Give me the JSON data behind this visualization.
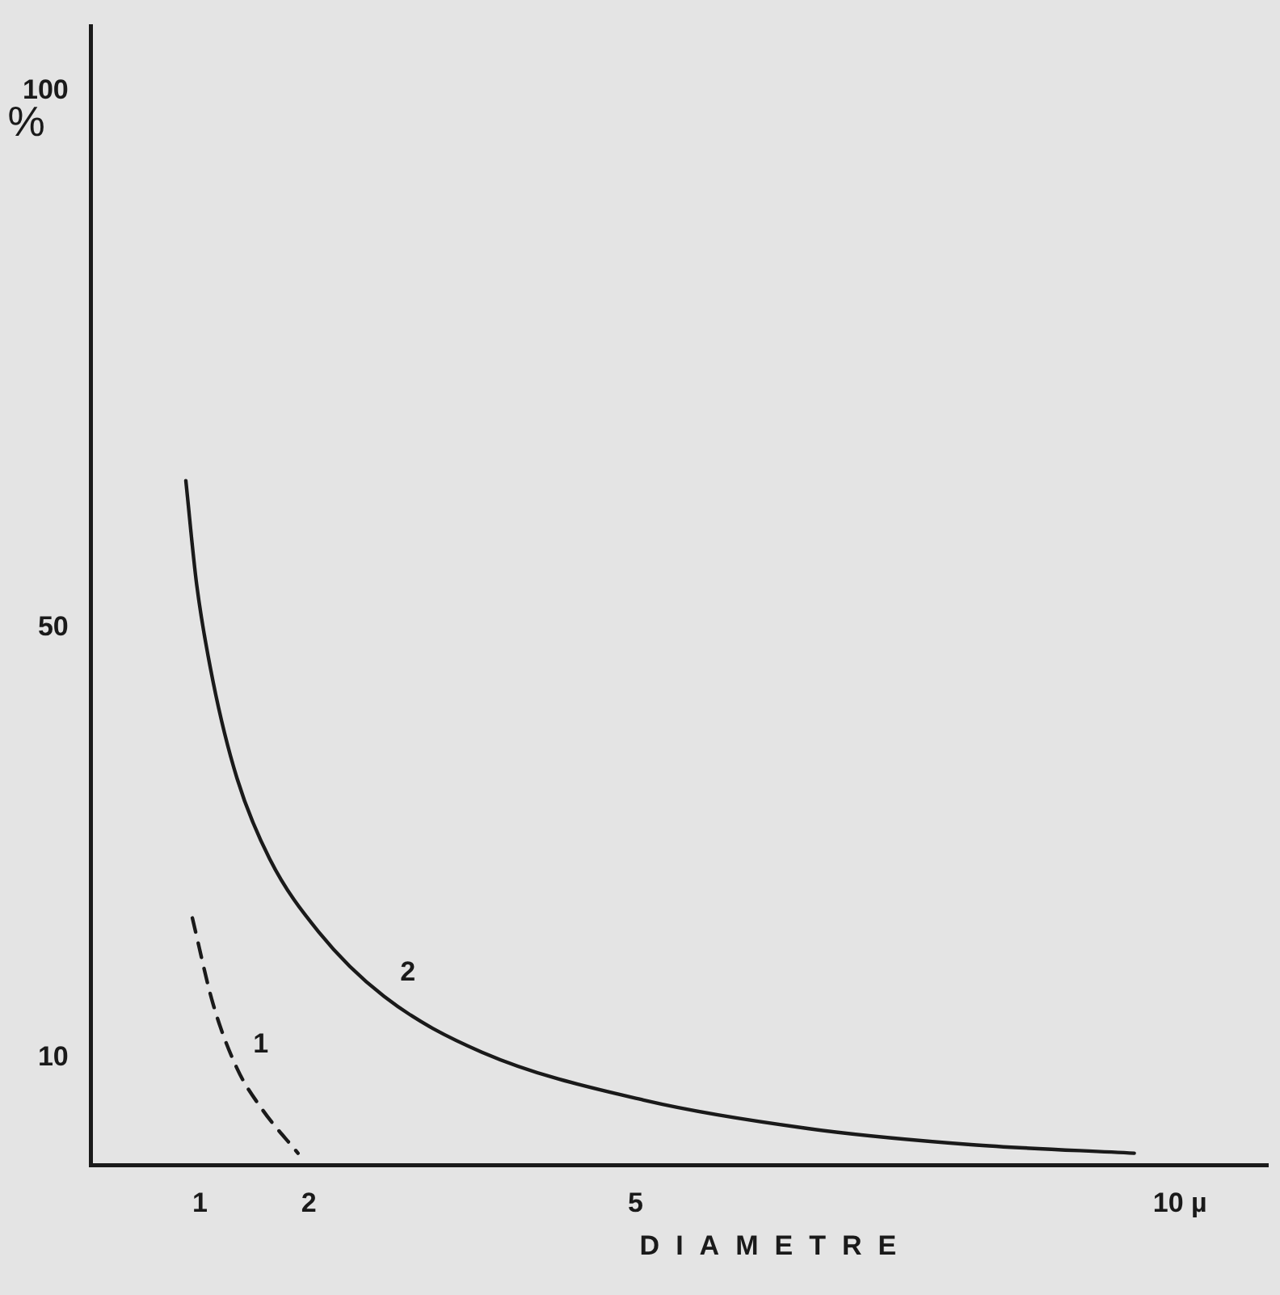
{
  "chart_data": {
    "type": "line",
    "xlabel": "DIAMETRE",
    "ylabel": "%",
    "xlim": [
      0,
      10.8
    ],
    "xticks": [
      1,
      2,
      5,
      {
        "value": 10,
        "label": "10 µ"
      }
    ],
    "ylim": [
      0,
      106
    ],
    "yticks": [
      10,
      50,
      100
    ],
    "grid": false,
    "legend": false,
    "marker": "none",
    "series": [
      {
        "name": "1",
        "color": "#1a1a1a",
        "line_style": "dashed",
        "x": [
          0.93,
          1.12,
          1.34,
          1.57,
          1.9
        ],
        "values": [
          23,
          15,
          9,
          5.2,
          1.1
        ]
      },
      {
        "name": "2",
        "color": "#1a1a1a",
        "line_style": "solid",
        "x": [
          0.87,
          0.97,
          1.12,
          1.34,
          1.64,
          2.09,
          2.69,
          3.59,
          5.09,
          6.58,
          8.08,
          9.58
        ],
        "values": [
          63.7,
          54,
          45,
          36,
          28.5,
          21.7,
          15.7,
          10.5,
          6,
          3.4,
          1.9,
          1.1
        ]
      }
    ]
  }
}
